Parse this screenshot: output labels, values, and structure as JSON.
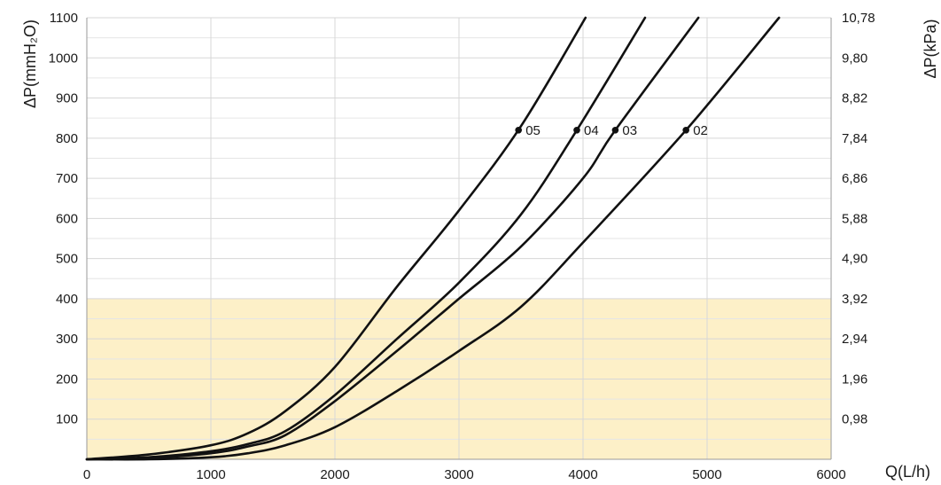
{
  "chart_data": {
    "type": "line",
    "xlabel": "Q(L/h)",
    "ylabel": "ΔP(mmH₂O)",
    "ylabel_right": "ΔP(kPa)",
    "xlim": [
      0,
      6000
    ],
    "ylim": [
      0,
      1100
    ],
    "x_ticks": [
      "0",
      "1000",
      "2000",
      "3000",
      "4000",
      "5000",
      "6000"
    ],
    "y_ticks": [
      "100",
      "200",
      "300",
      "400",
      "500",
      "600",
      "700",
      "800",
      "900",
      "1000",
      "1100"
    ],
    "y_ticks_right": [
      "0,98",
      "1,96",
      "2,94",
      "3,92",
      "4,90",
      "5,88",
      "6,86",
      "7,84",
      "8,82",
      "9,80",
      "10,78"
    ],
    "grid": true,
    "shaded_region": {
      "y_from": 0,
      "y_to": 400,
      "color": "#fdf0c8"
    },
    "marker_y": 820,
    "series": [
      {
        "name": "05",
        "marker_x": 3480,
        "points": [
          [
            0,
            0
          ],
          [
            500,
            12
          ],
          [
            1000,
            35
          ],
          [
            1300,
            65
          ],
          [
            1600,
            120
          ],
          [
            2000,
            230
          ],
          [
            2500,
            430
          ],
          [
            3000,
            620
          ],
          [
            3500,
            830
          ],
          [
            4020,
            1100
          ]
        ]
      },
      {
        "name": "04",
        "marker_x": 3950,
        "points": [
          [
            0,
            0
          ],
          [
            500,
            5
          ],
          [
            1000,
            20
          ],
          [
            1300,
            38
          ],
          [
            1600,
            70
          ],
          [
            2000,
            160
          ],
          [
            2500,
            300
          ],
          [
            3000,
            440
          ],
          [
            3500,
            610
          ],
          [
            3950,
            820
          ],
          [
            4500,
            1100
          ]
        ]
      },
      {
        "name": "03",
        "marker_x": 4260,
        "points": [
          [
            0,
            0
          ],
          [
            500,
            3
          ],
          [
            1000,
            15
          ],
          [
            1300,
            32
          ],
          [
            1600,
            60
          ],
          [
            2000,
            145
          ],
          [
            2500,
            270
          ],
          [
            3000,
            400
          ],
          [
            3500,
            530
          ],
          [
            4000,
            700
          ],
          [
            4260,
            820
          ],
          [
            4930,
            1100
          ]
        ]
      },
      {
        "name": "02",
        "marker_x": 4830,
        "points": [
          [
            0,
            0
          ],
          [
            500,
            0
          ],
          [
            1000,
            5
          ],
          [
            1300,
            15
          ],
          [
            1600,
            35
          ],
          [
            2000,
            80
          ],
          [
            2500,
            170
          ],
          [
            3000,
            270
          ],
          [
            3500,
            380
          ],
          [
            4000,
            540
          ],
          [
            4830,
            820
          ],
          [
            5580,
            1100
          ]
        ]
      }
    ]
  }
}
